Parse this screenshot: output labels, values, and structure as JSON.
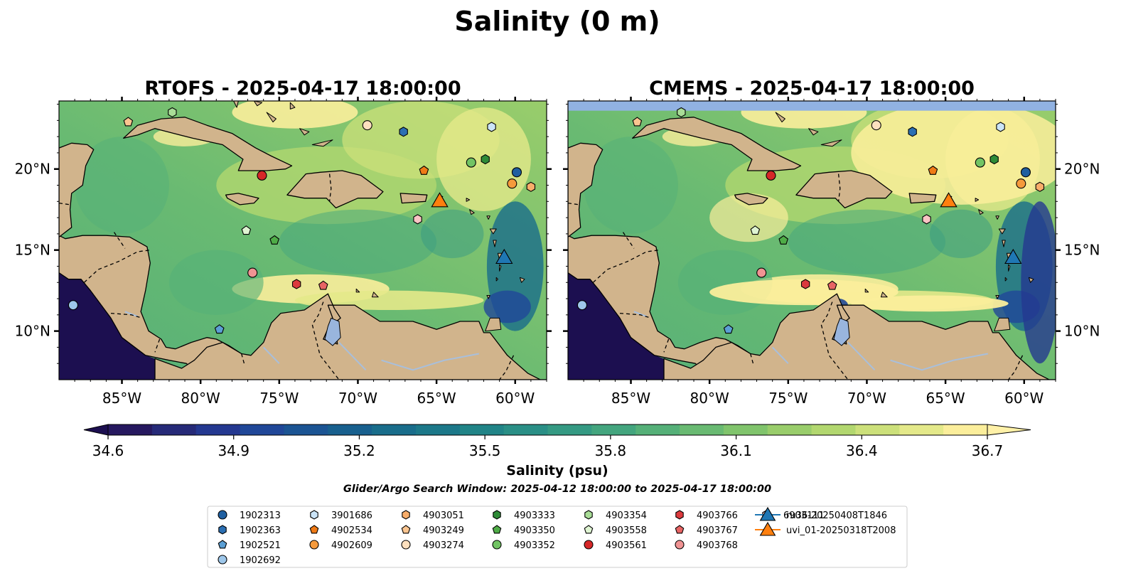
{
  "title": "Salinity (0 m)",
  "panels": [
    {
      "title": "RTOFS - 2025-04-17 18:00:00",
      "model": "RTOFS",
      "top_band": false
    },
    {
      "title": "CMEMS - 2025-04-17 18:00:00",
      "model": "CMEMS",
      "top_band": true
    }
  ],
  "map_extent": {
    "lon": [
      -89.0,
      -58.0
    ],
    "lat": [
      7.0,
      24.2
    ]
  },
  "lon_ticks": [
    {
      "value": -85,
      "label": "85°W"
    },
    {
      "value": -80,
      "label": "80°W"
    },
    {
      "value": -75,
      "label": "75°W"
    },
    {
      "value": -70,
      "label": "70°W"
    },
    {
      "value": -65,
      "label": "65°W"
    },
    {
      "value": -60,
      "label": "60°W"
    }
  ],
  "lat_ticks": [
    {
      "value": 10,
      "label": "10°N"
    },
    {
      "value": 15,
      "label": "15°N"
    },
    {
      "value": 20,
      "label": "20°N"
    }
  ],
  "colorbar": {
    "label": "Salinity (psu)",
    "min": 34.6,
    "max": 36.7,
    "extend": "both",
    "ticks": [
      "34.6",
      "34.9",
      "35.2",
      "35.5",
      "35.8",
      "36.1",
      "36.4",
      "36.7"
    ],
    "colors": [
      "#26185f",
      "#262a78",
      "#243890",
      "#204798",
      "#1b5493",
      "#18608e",
      "#196d8b",
      "#1c7889",
      "#218487",
      "#2a8f86",
      "#359a83",
      "#43a57e",
      "#55b078",
      "#69ba72",
      "#80c46c",
      "#99cd6b",
      "#b2d76f",
      "#cce07a",
      "#e4e98a",
      "#fbee9b"
    ],
    "under_color": "#1c0f50",
    "over_color": "#fff1a8"
  },
  "colors": {
    "land": "#d1b48c",
    "lake": "#99b5dd",
    "river": "#a8bfdc",
    "cmems_band": "#91b2e2"
  },
  "search_window": "Glider/Argo Search Window: 2025-04-12 18:00:00 to 2025-04-17 18:00:00",
  "legend": [
    {
      "label": "1902313",
      "marker": "circle",
      "color": "#1f5fa0"
    },
    {
      "label": "1902363",
      "marker": "hexagon",
      "color": "#2b6fb3"
    },
    {
      "label": "1902521",
      "marker": "pentagon",
      "color": "#5b9fd4"
    },
    {
      "label": "1902692",
      "marker": "circle",
      "color": "#9ec7ea"
    },
    {
      "label": "3901686",
      "marker": "hexagon",
      "color": "#cbe4f7"
    },
    {
      "label": "4902534",
      "marker": "pentagon",
      "color": "#ef7a16"
    },
    {
      "label": "4902609",
      "marker": "circle",
      "color": "#f59a3c"
    },
    {
      "label": "4903051",
      "marker": "hexagon",
      "color": "#f8ad6a"
    },
    {
      "label": "4903249",
      "marker": "pentagon",
      "color": "#fbc590"
    },
    {
      "label": "4903274",
      "marker": "circle",
      "color": "#fde0bf"
    },
    {
      "label": "4903333",
      "marker": "hexagon",
      "color": "#2e8b37"
    },
    {
      "label": "4903350",
      "marker": "pentagon",
      "color": "#4fac47"
    },
    {
      "label": "4903352",
      "marker": "circle",
      "color": "#72c464"
    },
    {
      "label": "4903354",
      "marker": "hexagon",
      "color": "#a9dd97"
    },
    {
      "label": "4903558",
      "marker": "pentagon",
      "color": "#dff4d2"
    },
    {
      "label": "4903561",
      "marker": "circle",
      "color": "#d62728"
    },
    {
      "label": "4903766",
      "marker": "hexagon",
      "color": "#dc3a3d"
    },
    {
      "label": "4903767",
      "marker": "pentagon",
      "color": "#e86464"
    },
    {
      "label": "4903768",
      "marker": "circle",
      "color": "#f09393"
    },
    {
      "label": "6903111",
      "marker": "hexagon",
      "color": "#f9c4c4"
    },
    {
      "label": "ru36-20250408T1846",
      "marker": "triangle",
      "color": "#1f77b4"
    },
    {
      "label": "uvi_01-20250318T2008",
      "marker": "triangle",
      "color": "#ff7f0e"
    }
  ],
  "floats": [
    {
      "id": "1902313",
      "lon": -59.9,
      "lat": 19.8
    },
    {
      "id": "1902363",
      "lon": -67.1,
      "lat": 22.3
    },
    {
      "id": "1902521",
      "lon": -78.8,
      "lat": 10.1
    },
    {
      "id": "1902692",
      "lon": -88.1,
      "lat": 11.6
    },
    {
      "id": "3901686",
      "lon": -61.5,
      "lat": 22.6
    },
    {
      "id": "4902534",
      "lon": -65.8,
      "lat": 19.9
    },
    {
      "id": "4902609",
      "lon": -60.2,
      "lat": 19.1
    },
    {
      "id": "4903051",
      "lon": -59.0,
      "lat": 18.9
    },
    {
      "id": "4903249",
      "lon": -84.6,
      "lat": 22.9
    },
    {
      "id": "4903274",
      "lon": -69.4,
      "lat": 22.7
    },
    {
      "id": "4903333",
      "lon": -61.9,
      "lat": 20.6
    },
    {
      "id": "4903350",
      "lon": -75.3,
      "lat": 15.6
    },
    {
      "id": "4903352",
      "lon": -62.8,
      "lat": 20.4
    },
    {
      "id": "4903354",
      "lon": -81.8,
      "lat": 23.5
    },
    {
      "id": "4903558",
      "lon": -77.1,
      "lat": 16.2
    },
    {
      "id": "4903561",
      "lon": -76.1,
      "lat": 19.6
    },
    {
      "id": "4903766",
      "lon": -73.9,
      "lat": 12.9
    },
    {
      "id": "4903767",
      "lon": -72.2,
      "lat": 12.8
    },
    {
      "id": "4903768",
      "lon": -76.7,
      "lat": 13.6
    },
    {
      "id": "6903111",
      "lon": -66.2,
      "lat": 16.9
    }
  ],
  "gliders": [
    {
      "id": "ru36-20250408T1846",
      "lon": -60.7,
      "lat": 14.6
    },
    {
      "id": "uvi_01-20250318T2008",
      "lon": -64.8,
      "lat": 18.1
    }
  ]
}
